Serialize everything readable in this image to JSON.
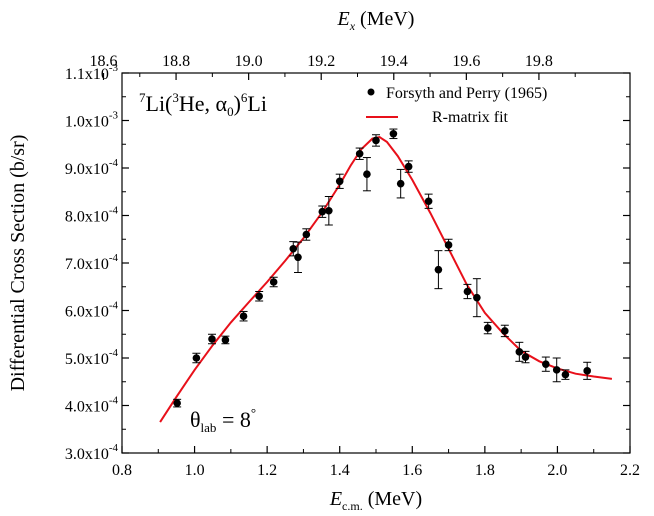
{
  "chart_data": {
    "type": "scatter",
    "x_label_main": "E",
    "x_label_sub": "c.m.",
    "x_label_unit": " (MeV)",
    "top_label_main": "E",
    "top_label_sub": "x",
    "top_label_unit": " (MeV)",
    "ylabel": "Differential Cross Section (b/sr)",
    "xlim": [
      0.8,
      2.2
    ],
    "ylim": [
      0.0003,
      0.0011
    ],
    "x_ticks": [
      "0.8",
      "1.0",
      "1.2",
      "1.4",
      "1.6",
      "1.8",
      "2.0",
      "2.2"
    ],
    "y_ticks": [
      {
        "mant": "3.0x10",
        "exp": "-4"
      },
      {
        "mant": "4.0x10",
        "exp": "-4"
      },
      {
        "mant": "5.0x10",
        "exp": "-4"
      },
      {
        "mant": "6.0x10",
        "exp": "-4"
      },
      {
        "mant": "7.0x10",
        "exp": "-4"
      },
      {
        "mant": "8.0x10",
        "exp": "-4"
      },
      {
        "mant": "9.0x10",
        "exp": "-4"
      },
      {
        "mant": "1.0x10",
        "exp": "-3"
      },
      {
        "mant": "1.1x10",
        "exp": "-3"
      }
    ],
    "top_ticks": [
      "18.6",
      "18.8",
      "19.0",
      "19.2",
      "19.4",
      "19.6",
      "19.8"
    ],
    "top_tick_values": [
      18.6,
      18.8,
      19.0,
      19.2,
      19.4,
      19.6,
      19.8
    ],
    "top_axis_relation": {
      "slope": 1.0,
      "offset": 17.851
    },
    "reaction_label": {
      "a": "7",
      "b": "Li(",
      "c": "3",
      "d": "He, α",
      "e": "0",
      "f": ")",
      "g": "6",
      "h": "Li"
    },
    "angle_label": {
      "a": "θ",
      "b": "lab",
      "c": " = 8",
      "d": "°"
    },
    "legend": {
      "data_label": "Forsyth and Perry (1965)",
      "fit_label": "R-matrix fit",
      "position": "top-right"
    },
    "colors": {
      "fit": "#e8101a",
      "points": "#000000",
      "axes": "#000000"
    },
    "series": [
      {
        "name": "Forsyth and Perry (1965)",
        "points": [
          {
            "x": 0.952,
            "y": 0.000405,
            "err": 8e-06
          },
          {
            "x": 1.005,
            "y": 0.0005,
            "err": 1e-05
          },
          {
            "x": 1.048,
            "y": 0.00054,
            "err": 1e-05
          },
          {
            "x": 1.085,
            "y": 0.000538,
            "err": 8e-06
          },
          {
            "x": 1.135,
            "y": 0.000588,
            "err": 1e-05
          },
          {
            "x": 1.178,
            "y": 0.00063,
            "err": 1e-05
          },
          {
            "x": 1.218,
            "y": 0.00066,
            "err": 1e-05
          },
          {
            "x": 1.272,
            "y": 0.00073,
            "err": 1.5e-05
          },
          {
            "x": 1.285,
            "y": 0.000712,
            "err": 3.2e-05
          },
          {
            "x": 1.308,
            "y": 0.00076,
            "err": 1.2e-05
          },
          {
            "x": 1.352,
            "y": 0.000808,
            "err": 1.2e-05
          },
          {
            "x": 1.37,
            "y": 0.00081,
            "err": 3e-05
          },
          {
            "x": 1.4,
            "y": 0.000872,
            "err": 1.5e-05
          },
          {
            "x": 1.455,
            "y": 0.00093,
            "err": 1.2e-05
          },
          {
            "x": 1.475,
            "y": 0.000887,
            "err": 3.5e-05
          },
          {
            "x": 1.5,
            "y": 0.000958,
            "err": 1.2e-05
          },
          {
            "x": 1.548,
            "y": 0.000972,
            "err": 1e-05
          },
          {
            "x": 1.568,
            "y": 0.000867,
            "err": 3e-05
          },
          {
            "x": 1.59,
            "y": 0.000903,
            "err": 1.2e-05
          },
          {
            "x": 1.645,
            "y": 0.00083,
            "err": 1.5e-05
          },
          {
            "x": 1.672,
            "y": 0.000686,
            "err": 4e-05
          },
          {
            "x": 1.7,
            "y": 0.000738,
            "err": 1.2e-05
          },
          {
            "x": 1.752,
            "y": 0.00064,
            "err": 1.5e-05
          },
          {
            "x": 1.778,
            "y": 0.000627,
            "err": 4e-05
          },
          {
            "x": 1.808,
            "y": 0.000563,
            "err": 1.2e-05
          },
          {
            "x": 1.855,
            "y": 0.000557,
            "err": 1.2e-05
          },
          {
            "x": 1.895,
            "y": 0.000513,
            "err": 2e-05
          },
          {
            "x": 1.912,
            "y": 0.000502,
            "err": 1.2e-05
          },
          {
            "x": 1.968,
            "y": 0.000487,
            "err": 1.5e-05
          },
          {
            "x": 1.998,
            "y": 0.000475,
            "err": 2.5e-05
          },
          {
            "x": 2.022,
            "y": 0.000465,
            "err": 1e-05
          },
          {
            "x": 2.082,
            "y": 0.000473,
            "err": 1.8e-05
          }
        ]
      },
      {
        "name": "R-matrix fit",
        "x": [
          0.905,
          0.95,
          1.0,
          1.05,
          1.1,
          1.15,
          1.2,
          1.25,
          1.3,
          1.35,
          1.4,
          1.43,
          1.46,
          1.49,
          1.51,
          1.53,
          1.56,
          1.6,
          1.65,
          1.7,
          1.75,
          1.8,
          1.85,
          1.9,
          1.95,
          2.0,
          2.05,
          2.1,
          2.15
        ],
        "y": [
          0.000365,
          0.000418,
          0.000475,
          0.000527,
          0.000575,
          0.000618,
          0.00066,
          0.000705,
          0.000752,
          0.000805,
          0.000865,
          0.000905,
          0.00094,
          0.000962,
          0.000965,
          0.000955,
          0.000925,
          0.000875,
          0.000805,
          0.00073,
          0.000655,
          0.000595,
          0.000552,
          0.000515,
          0.000493,
          0.000478,
          0.000467,
          0.000461,
          0.000456
        ]
      }
    ]
  }
}
